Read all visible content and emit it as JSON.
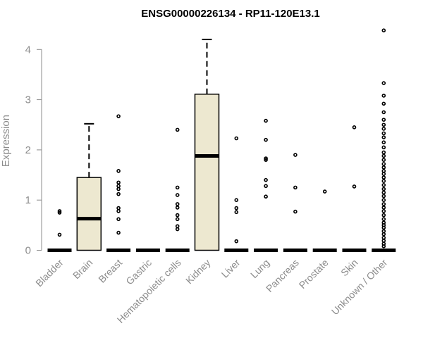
{
  "chart_data": {
    "type": "box",
    "title": "ENSG00000226134 - RP11-120E13.1",
    "ylabel": "Expression",
    "xlabel": "",
    "ylim": [
      0,
      4.4
    ],
    "yticks": [
      0,
      1,
      2,
      3,
      4
    ],
    "grid": false,
    "colors": {
      "box_fill": "#ede8d0",
      "stroke": "#000000",
      "axis": "#8c8c8c"
    },
    "categories": [
      "Bladder",
      "Brain",
      "Breast",
      "Gastric",
      "Hematopoietic cells",
      "Kidney",
      "Liver",
      "Lung",
      "Pancreas",
      "Prostate",
      "Skin",
      "Unknown / Other"
    ],
    "boxes": [
      {
        "category": "Bladder",
        "q1": 0,
        "median": 0,
        "q3": 0,
        "whisker_low": 0,
        "whisker_high": 0,
        "outliers": [
          0.31,
          0.75,
          0.78
        ]
      },
      {
        "category": "Brain",
        "q1": 0,
        "median": 0.63,
        "q3": 1.45,
        "whisker_low": 0,
        "whisker_high": 2.52,
        "outliers": []
      },
      {
        "category": "Breast",
        "q1": 0,
        "median": 0,
        "q3": 0,
        "whisker_low": 0,
        "whisker_high": 0,
        "outliers": [
          0.35,
          0.62,
          0.78,
          0.84,
          1.12,
          1.22,
          1.28,
          1.35,
          1.58,
          2.67
        ]
      },
      {
        "category": "Gastric",
        "q1": 0,
        "median": 0,
        "q3": 0,
        "whisker_low": 0,
        "whisker_high": 0,
        "outliers": []
      },
      {
        "category": "Hematopoietic cells",
        "q1": 0,
        "median": 0,
        "q3": 0,
        "whisker_low": 0,
        "whisker_high": 0,
        "outliers": [
          0.42,
          0.48,
          0.62,
          0.7,
          0.85,
          0.92,
          1.1,
          1.25,
          2.4
        ]
      },
      {
        "category": "Kidney",
        "q1": 0,
        "median": 1.88,
        "q3": 3.11,
        "whisker_low": 0,
        "whisker_high": 4.2,
        "outliers": []
      },
      {
        "category": "Liver",
        "q1": 0,
        "median": 0,
        "q3": 0,
        "whisker_low": 0,
        "whisker_high": 0,
        "outliers": [
          0.18,
          0.76,
          0.84,
          1.0,
          2.23
        ]
      },
      {
        "category": "Lung",
        "q1": 0,
        "median": 0,
        "q3": 0,
        "whisker_low": 0,
        "whisker_high": 0,
        "outliers": [
          1.07,
          1.28,
          1.4,
          1.8,
          1.83,
          2.2,
          2.58
        ]
      },
      {
        "category": "Pancreas",
        "q1": 0,
        "median": 0,
        "q3": 0,
        "whisker_low": 0,
        "whisker_high": 0,
        "outliers": [
          0.77,
          1.25,
          1.9
        ]
      },
      {
        "category": "Prostate",
        "q1": 0,
        "median": 0,
        "q3": 0,
        "whisker_low": 0,
        "whisker_high": 0,
        "outliers": [
          1.17
        ]
      },
      {
        "category": "Skin",
        "q1": 0,
        "median": 0,
        "q3": 0,
        "whisker_low": 0,
        "whisker_high": 0,
        "outliers": [
          1.27,
          2.45
        ]
      },
      {
        "category": "Unknown / Other",
        "q1": 0,
        "median": 0,
        "q3": 0,
        "whisker_low": 0,
        "whisker_high": 0,
        "outliers": [
          0.08,
          0.13,
          0.19,
          0.25,
          0.32,
          0.38,
          0.45,
          0.5,
          0.55,
          0.62,
          0.7,
          0.78,
          0.85,
          0.92,
          1.0,
          1.08,
          1.15,
          1.22,
          1.3,
          1.38,
          1.45,
          1.52,
          1.58,
          1.65,
          1.72,
          1.8,
          1.88,
          1.95,
          2.05,
          2.15,
          2.25,
          2.33,
          2.42,
          2.5,
          2.6,
          2.75,
          2.92,
          3.08,
          3.33,
          4.38
        ]
      }
    ]
  }
}
